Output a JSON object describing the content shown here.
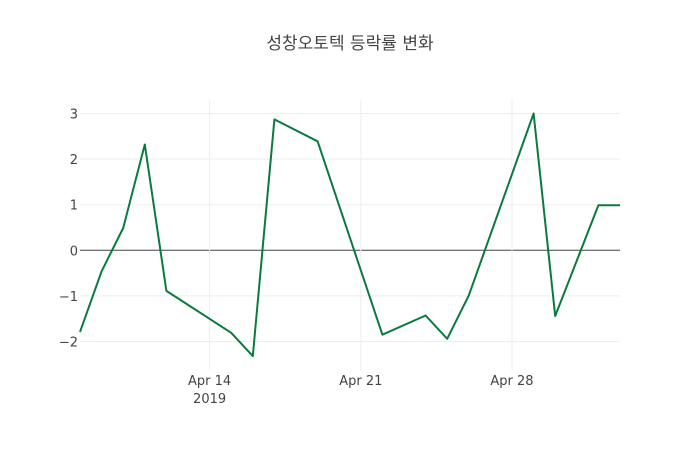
{
  "chart_data": {
    "type": "line",
    "title": "성창오토텍 등락률 변화",
    "xlabel": "",
    "ylabel": "",
    "x": [
      "2019-04-08",
      "2019-04-09",
      "2019-04-10",
      "2019-04-11",
      "2019-04-12",
      "2019-04-15",
      "2019-04-16",
      "2019-04-17",
      "2019-04-19",
      "2019-04-22",
      "2019-04-24",
      "2019-04-25",
      "2019-04-26",
      "2019-04-29",
      "2019-04-30",
      "2019-05-02",
      "2019-05-03"
    ],
    "series": [
      {
        "name": "등락률",
        "color": "#0a7a3e",
        "values": [
          -1.79,
          -0.46,
          0.49,
          2.32,
          -0.89,
          -1.81,
          -2.32,
          2.87,
          2.39,
          -1.85,
          -1.43,
          -1.94,
          -0.99,
          3.0,
          -1.44,
          0.99,
          0.99
        ]
      }
    ],
    "xlim": [
      "2019-04-08",
      "2019-05-03"
    ],
    "ylim": [
      -2.55,
      3.3
    ],
    "yticks": [
      3,
      2,
      1,
      0,
      -1,
      -2
    ],
    "ytick_labels": [
      "3",
      "2",
      "1",
      "0",
      "−1",
      "−2"
    ],
    "xticks": [
      "2019-04-14",
      "2019-04-21",
      "2019-04-28"
    ],
    "xtick_labels": [
      "Apr 14",
      "Apr 21",
      "Apr 28"
    ],
    "xtick_sublabel": "2019",
    "grid": true,
    "legend": "none"
  }
}
